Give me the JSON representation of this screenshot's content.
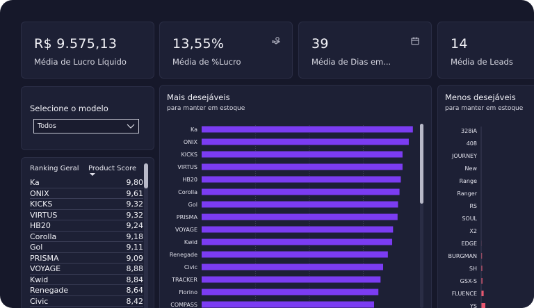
{
  "colors": {
    "background": "#16182a",
    "card": "#1d2035",
    "bar_primary": "#7b3cf2",
    "bar_secondary": "#e8566e"
  },
  "kpis": [
    {
      "value": "R$ 9.575,13",
      "label": "Média de Lucro Líquido",
      "icon": ""
    },
    {
      "value": "13,55%",
      "label": "Média de %Lucro",
      "icon": "hand-money-icon"
    },
    {
      "value": "39",
      "label": "Média de Dias em...",
      "icon": "calendar-icon"
    },
    {
      "value": "14",
      "label": "Média de Leads",
      "icon": ""
    }
  ],
  "selector": {
    "title": "Selecione o modelo",
    "value": "Todos"
  },
  "ranking": {
    "col_name": "Ranking Geral",
    "col_score": "Product Score",
    "rows": [
      {
        "name": "Ka",
        "score": "9,80"
      },
      {
        "name": "ONIX",
        "score": "9,61"
      },
      {
        "name": "KICKS",
        "score": "9,32"
      },
      {
        "name": "VIRTUS",
        "score": "9,32"
      },
      {
        "name": "HB20",
        "score": "9,24"
      },
      {
        "name": "Corolla",
        "score": "9,18"
      },
      {
        "name": "Gol",
        "score": "9,11"
      },
      {
        "name": "PRISMA",
        "score": "9,09"
      },
      {
        "name": "VOYAGE",
        "score": "8,88"
      },
      {
        "name": "Kwid",
        "score": "8,84"
      },
      {
        "name": "Renegade",
        "score": "8,64"
      },
      {
        "name": "Civic",
        "score": "8,42"
      }
    ]
  },
  "chart_data": [
    {
      "type": "bar",
      "orientation": "horizontal",
      "title": "Mais desejáveis",
      "subtitle": "para manter em estoque",
      "categories": [
        "Ka",
        "ONIX",
        "KICKS",
        "VIRTUS",
        "HB20",
        "Corolla",
        "Gol",
        "PRISMA",
        "VOYAGE",
        "Kwid",
        "Renegade",
        "Civic",
        "TRACKER",
        "Fiorino",
        "COMPASS"
      ],
      "values": [
        9.8,
        9.61,
        9.32,
        9.32,
        9.24,
        9.18,
        9.11,
        9.09,
        8.88,
        8.84,
        8.64,
        8.42,
        8.3,
        8.2,
        8.0
      ],
      "xlim": [
        0,
        10
      ],
      "grid": true,
      "color": "#7b3cf2"
    },
    {
      "type": "bar",
      "orientation": "horizontal",
      "title": "Menos desejáveis",
      "subtitle": "para manter em estoque",
      "categories": [
        "328iA",
        "408",
        "JOURNEY",
        "New",
        "Range",
        "Ranger",
        "RS",
        "SOUL",
        "X2",
        "EDGE",
        "BURGMAN",
        "SH",
        "GSX-S",
        "FLUENCE",
        "YS"
      ],
      "values": [
        0,
        0,
        0,
        0,
        0,
        0,
        0,
        0,
        0,
        0.1,
        0.2,
        0.25,
        0.3,
        0.6,
        1.0
      ],
      "xlim": [
        0,
        10
      ],
      "grid": false,
      "color": "#e8566e"
    }
  ]
}
